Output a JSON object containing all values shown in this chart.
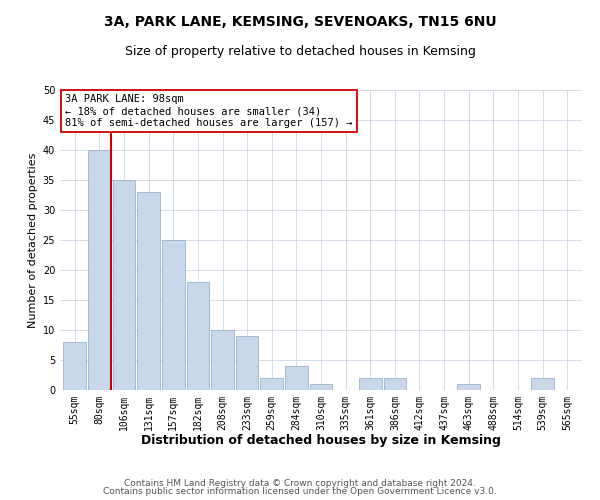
{
  "title": "3A, PARK LANE, KEMSING, SEVENOAKS, TN15 6NU",
  "subtitle": "Size of property relative to detached houses in Kemsing",
  "xlabel": "Distribution of detached houses by size in Kemsing",
  "ylabel": "Number of detached properties",
  "bar_labels": [
    "55sqm",
    "80sqm",
    "106sqm",
    "131sqm",
    "157sqm",
    "182sqm",
    "208sqm",
    "233sqm",
    "259sqm",
    "284sqm",
    "310sqm",
    "335sqm",
    "361sqm",
    "386sqm",
    "412sqm",
    "437sqm",
    "463sqm",
    "488sqm",
    "514sqm",
    "539sqm",
    "565sqm"
  ],
  "bar_values": [
    8,
    40,
    35,
    33,
    25,
    18,
    10,
    9,
    2,
    4,
    1,
    0,
    2,
    2,
    0,
    0,
    1,
    0,
    0,
    2,
    0
  ],
  "bar_color": "#c8d8ea",
  "bar_edge_color": "#9ab4cc",
  "highlight_line_color": "#cc0000",
  "annotation_text": "3A PARK LANE: 98sqm\n← 18% of detached houses are smaller (34)\n81% of semi-detached houses are larger (157) →",
  "annotation_box_color": "#ffffff",
  "annotation_box_edge": "#cc0000",
  "ylim": [
    0,
    50
  ],
  "yticks": [
    0,
    5,
    10,
    15,
    20,
    25,
    30,
    35,
    40,
    45,
    50
  ],
  "footer_line1": "Contains HM Land Registry data © Crown copyright and database right 2024.",
  "footer_line2": "Contains public sector information licensed under the Open Government Licence v3.0.",
  "bg_color": "#ffffff",
  "grid_color": "#ccd8e8",
  "title_fontsize": 10,
  "subtitle_fontsize": 9,
  "xlabel_fontsize": 9,
  "ylabel_fontsize": 8,
  "tick_fontsize": 7,
  "annotation_fontsize": 7.5,
  "footer_fontsize": 6.5
}
